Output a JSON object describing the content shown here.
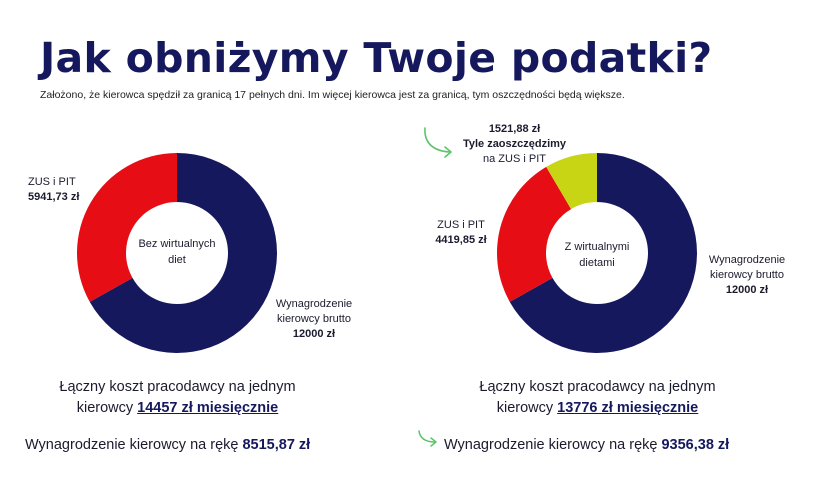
{
  "title": "Jak obniżymy Twoje podatki?",
  "subtitle": "Założono, że kierowca spędził za granicą 17 pełnych dni. Im więcej kierowca jest za granicą, tym oszczędności będą większe.",
  "colors": {
    "navy": "#16185e",
    "red": "#e60d14",
    "lime": "#c8d514",
    "green": "#5cc46a"
  },
  "left": {
    "center_label_1": "Bez wirtualnych",
    "center_label_2": "diet",
    "zus_label": "ZUS i PIT",
    "zus_value": "5941,73 zł",
    "salary_label_1": "Wynagrodzenie",
    "salary_label_2": "kierowcy brutto",
    "salary_value": "12000 zł",
    "cost_line1": "Łączny koszt pracodawcy na jednym",
    "cost_line2_prefix": "kierowcy",
    "cost_emph": "14457 zł miesięcznie",
    "net_prefix": "Wynagrodzenie kierowcy na rękę",
    "net_value": "8515,87 zł"
  },
  "right": {
    "center_label_1": "Z wirtualnymi",
    "center_label_2": "dietami",
    "savings_value": "1521,88 zł",
    "savings_label_1": "Tyle zaoszczędzimy",
    "savings_label_2": "na ZUS i PIT",
    "zus_label": "ZUS i PIT",
    "zus_value": "4419,85 zł",
    "salary_label_1": "Wynagrodzenie",
    "salary_label_2": "kierowcy brutto",
    "salary_value": "12000 zł",
    "cost_line1": "Łączny koszt pracodawcy na jednym",
    "cost_line2_prefix": "kierowcy",
    "cost_emph": "13776 zł miesięcznie",
    "net_prefix": "Wynagrodzenie kierowcy na rękę",
    "net_value": "9356,38 zł"
  },
  "chart_data": [
    {
      "type": "pie",
      "series": [
        {
          "name": "Wynagrodzenie kierowcy brutto",
          "value": 12000,
          "color": "#16185e"
        },
        {
          "name": "ZUS i PIT",
          "value": 5941.73,
          "color": "#e60d14"
        }
      ]
    },
    {
      "type": "pie",
      "series": [
        {
          "name": "Wynagrodzenie kierowcy brutto",
          "value": 12000,
          "color": "#16185e"
        },
        {
          "name": "ZUS i PIT",
          "value": 4419.85,
          "color": "#e60d14"
        },
        {
          "name": "Tyle zaoszczędzimy na ZUS i PIT",
          "value": 1521.88,
          "color": "#c8d514"
        }
      ]
    }
  ]
}
